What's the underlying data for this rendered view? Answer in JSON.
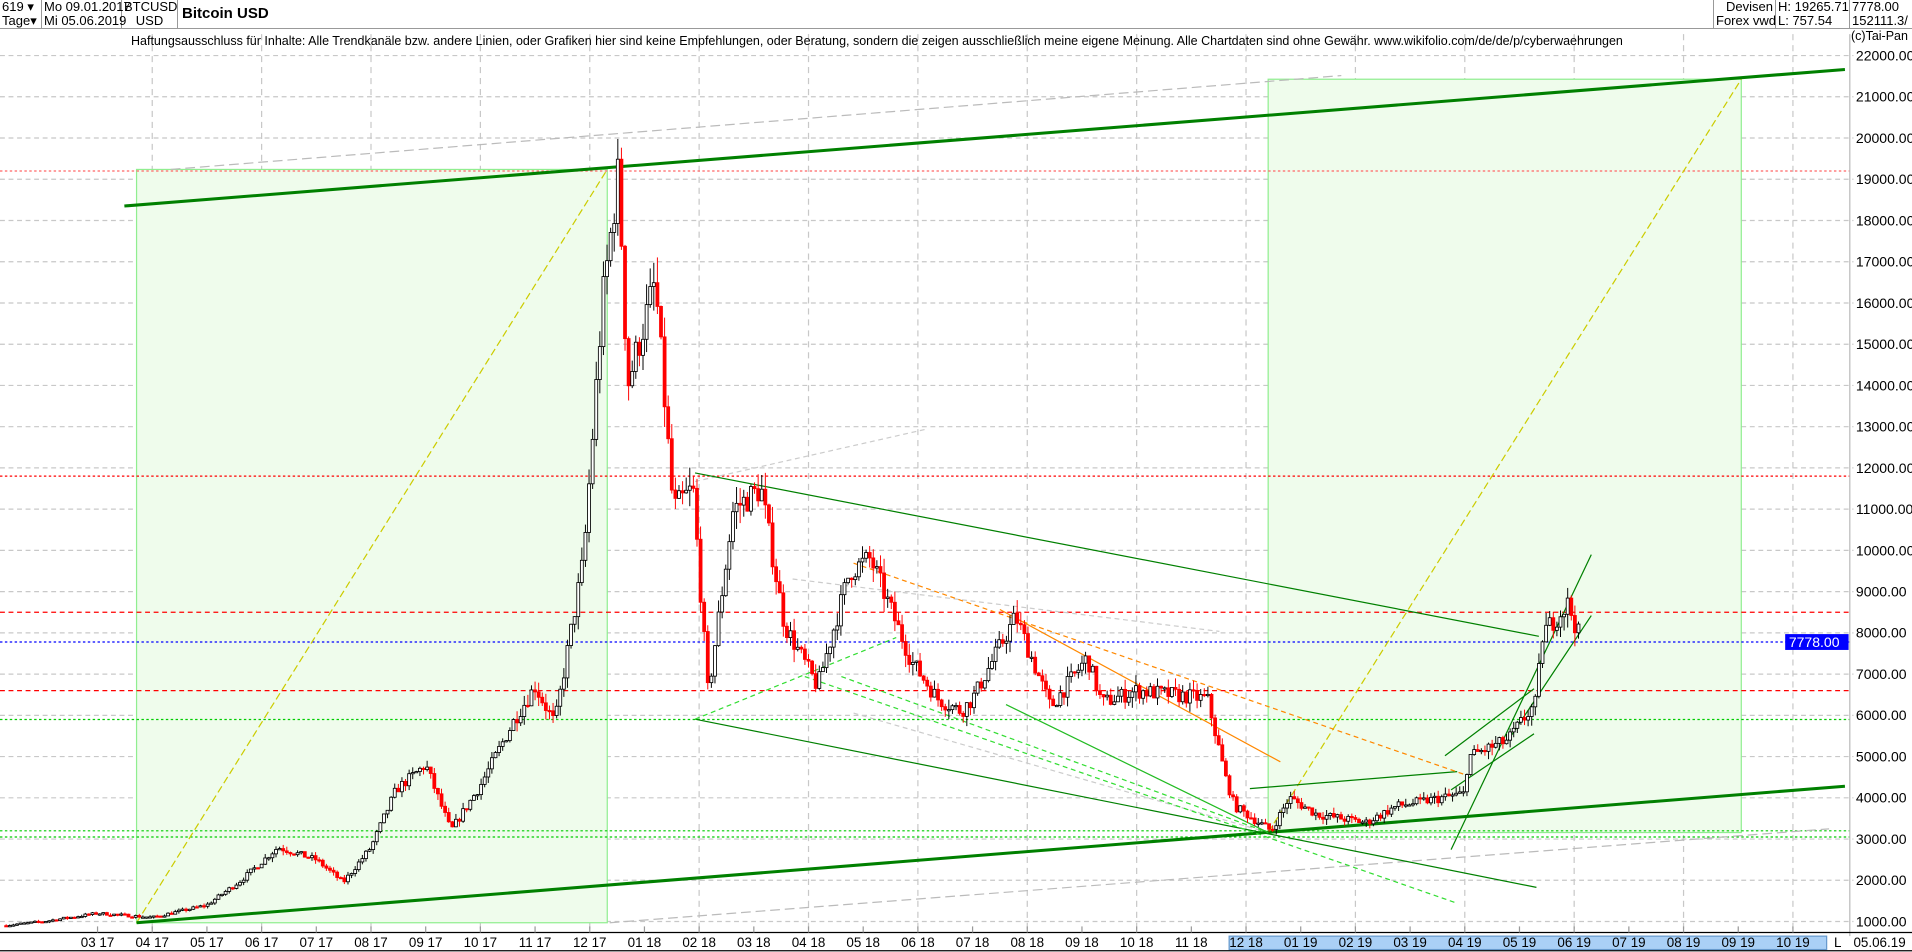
{
  "header": {
    "bars_count": "619",
    "period": "Tage",
    "date_from": "Mo 09.01.2017",
    "date_to": "Mi 05.06.2019",
    "symbol": "BTCUSD",
    "currency": "USD",
    "title": "Bitcoin USD",
    "exchange_line1": "Devisen",
    "exchange_line2": "Forex vwd",
    "high": "H: 19265.71",
    "low": "L: 757.54",
    "last": "7778.00",
    "volume": "152111.3/"
  },
  "disclaimer": "Haftungsausschluss für Inhalte: Alle Trendkanäle bzw. andere Linien, oder Grafiken hier sind keine Empfehlungen, oder Beratung, sondern die zeigen ausschließlich meine eigene Meinung. Alle Chartdaten sind ohne Gewähr.  www.wikifolio.com/de/de/p/cyberwaehrungen",
  "copyright": "(c)Tai-Pan",
  "x_axis": {
    "end_marker": "L",
    "end_date": "05.06.19"
  },
  "colors": {
    "up_candle": "#000000",
    "down_candle": "#ff0000",
    "last_price": "#0000ff",
    "box_fill": "#effcec",
    "trend_green": "#008000"
  },
  "chart_data": {
    "type": "candlestick",
    "title": "Bitcoin USD",
    "ylim": [
      1000,
      22000
    ],
    "y_ticks": [
      "22000.00",
      "21000.00",
      "20000.00",
      "19000.00",
      "18000.00",
      "17000.00",
      "16000.00",
      "15000.00",
      "14000.00",
      "13000.00",
      "12000.00",
      "11000.00",
      "10000.00",
      "9000.00",
      "8000.00",
      "7000.00",
      "6000.00",
      "5000.00",
      "4000.00",
      "3000.00",
      "2000.00",
      "1000.00"
    ],
    "x_ticks": [
      "03 17",
      "04 17",
      "05 17",
      "06 17",
      "07 17",
      "08 17",
      "09 17",
      "10 17",
      "11 17",
      "12 17",
      "01 18",
      "02 18",
      "03 18",
      "04 18",
      "05 18",
      "06 18",
      "07 18",
      "08 18",
      "09 18",
      "10 18",
      "11 18",
      "12 18",
      "01 19",
      "02 19",
      "03 19",
      "04 19",
      "05 19",
      "06 19",
      "07 19",
      "08 19",
      "09 19",
      "10 19"
    ],
    "last_price_label": "7778.00",
    "grid": true,
    "series": [
      [
        "2017-01-09",
        900
      ],
      [
        "2017-02-01",
        1000
      ],
      [
        "2017-03-01",
        1200
      ],
      [
        "2017-04-01",
        1100
      ],
      [
        "2017-05-01",
        1400
      ],
      [
        "2017-05-20",
        2000
      ],
      [
        "2017-06-10",
        2800
      ],
      [
        "2017-07-01",
        2500
      ],
      [
        "2017-07-16",
        1950
      ],
      [
        "2017-08-01",
        2800
      ],
      [
        "2017-08-15",
        4200
      ],
      [
        "2017-09-01",
        4800
      ],
      [
        "2017-09-15",
        3200
      ],
      [
        "2017-10-01",
        4300
      ],
      [
        "2017-10-20",
        5900
      ],
      [
        "2017-11-01",
        6700
      ],
      [
        "2017-11-12",
        5800
      ],
      [
        "2017-11-28",
        9800
      ],
      [
        "2017-12-08",
        16000
      ],
      [
        "2017-12-17",
        19200
      ],
      [
        "2017-12-22",
        14000
      ],
      [
        "2018-01-07",
        16500
      ],
      [
        "2018-01-17",
        11000
      ],
      [
        "2018-01-28",
        11500
      ],
      [
        "2018-02-06",
        6500
      ],
      [
        "2018-02-20",
        11000
      ],
      [
        "2018-03-05",
        11500
      ],
      [
        "2018-03-18",
        8200
      ],
      [
        "2018-04-06",
        6700
      ],
      [
        "2018-04-24",
        9500
      ],
      [
        "2018-05-05",
        9800
      ],
      [
        "2018-05-28",
        7300
      ],
      [
        "2018-06-12",
        6400
      ],
      [
        "2018-06-25",
        6100
      ],
      [
        "2018-07-01",
        6400
      ],
      [
        "2018-07-25",
        8400
      ],
      [
        "2018-08-14",
        6200
      ],
      [
        "2018-09-04",
        7400
      ],
      [
        "2018-09-12",
        6300
      ],
      [
        "2018-10-01",
        6600
      ],
      [
        "2018-11-10",
        6400
      ],
      [
        "2018-11-20",
        4500
      ],
      [
        "2018-11-25",
        3800
      ],
      [
        "2018-12-15",
        3200
      ],
      [
        "2018-12-25",
        4000
      ],
      [
        "2019-01-10",
        3600
      ],
      [
        "2019-02-07",
        3400
      ],
      [
        "2019-02-24",
        3800
      ],
      [
        "2019-03-31",
        4100
      ],
      [
        "2019-04-03",
        5000
      ],
      [
        "2019-04-25",
        5400
      ],
      [
        "2019-05-10",
        6300
      ],
      [
        "2019-05-14",
        8000
      ],
      [
        "2019-05-28",
        8700
      ],
      [
        "2019-06-05",
        7778
      ]
    ],
    "horizontal_levels": [
      {
        "price": 19200,
        "color": "#ff6666",
        "style": "dotted"
      },
      {
        "price": 11800,
        "color": "#ff0000",
        "style": "dotted"
      },
      {
        "price": 8500,
        "color": "#ff0000",
        "style": "dashed"
      },
      {
        "price": 7778,
        "color": "#0000ff",
        "style": "dotted"
      },
      {
        "price": 6600,
        "color": "#ff0000",
        "style": "dashed"
      },
      {
        "price": 5900,
        "color": "#00cc00",
        "style": "dotted"
      },
      {
        "price": 3200,
        "color": "#00cc00",
        "style": "dotted"
      },
      {
        "price": 3050,
        "color": "#00cc00",
        "style": "dotted"
      }
    ]
  }
}
